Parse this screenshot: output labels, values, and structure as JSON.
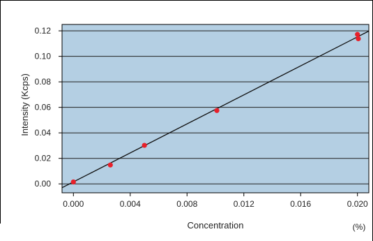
{
  "colors": {
    "plot_background": "#b4cfe3",
    "point": "#e8202a",
    "fit_line": "#111111",
    "grid": "#222222",
    "frame": "#000000"
  },
  "chart_data": {
    "type": "scatter",
    "xlabel": "Concentration",
    "x_unit": "(%)",
    "ylabel": "Intensity (Kcps)",
    "xlim": [
      -0.0008,
      0.0208
    ],
    "ylim": [
      -0.007,
      0.125
    ],
    "x_ticks": [
      0.0,
      0.004,
      0.008,
      0.012,
      0.016,
      0.02
    ],
    "x_tick_labels": [
      "0.000",
      "0.004",
      "0.008",
      "0.012",
      "0.016",
      "0.020"
    ],
    "y_ticks": [
      0.0,
      0.02,
      0.04,
      0.06,
      0.08,
      0.1,
      0.12
    ],
    "y_tick_labels": [
      "0.00",
      "0.02",
      "0.04",
      "0.06",
      "0.08",
      "0.10",
      "0.12"
    ],
    "grid": "horizontal",
    "series": [
      {
        "x": [
          0.0,
          0.0026,
          0.005,
          0.0101,
          0.02,
          0.02006
        ],
        "y": [
          0.0015,
          0.0148,
          0.0302,
          0.0575,
          0.1172,
          0.1138
        ]
      }
    ],
    "fit_line": {
      "x": [
        -0.0008,
        0.0208
      ],
      "y": [
        -0.003,
        0.1198
      ]
    }
  }
}
